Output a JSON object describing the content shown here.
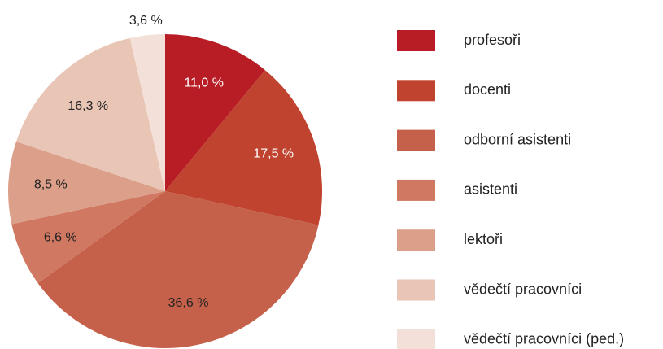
{
  "chart_data": {
    "type": "pie",
    "categories": [
      "profesoři",
      "docenti",
      "odborní asistenti",
      "asistenti",
      "lektoři",
      "vědečtí pracovníci",
      "vědečtí pracovníci (ped.)"
    ],
    "values": [
      11.0,
      17.5,
      36.6,
      6.6,
      8.5,
      16.3,
      3.6
    ],
    "value_labels": [
      "11,0 %",
      "17,5 %",
      "36,6 %",
      "6,6 %",
      "8,5 %",
      "16,3 %",
      "3,6 %"
    ],
    "colors": [
      "#b81d26",
      "#c0432f",
      "#c5614a",
      "#d07862",
      "#dc9f89",
      "#e9c5b5",
      "#f3e1d9"
    ],
    "legend": "right"
  }
}
